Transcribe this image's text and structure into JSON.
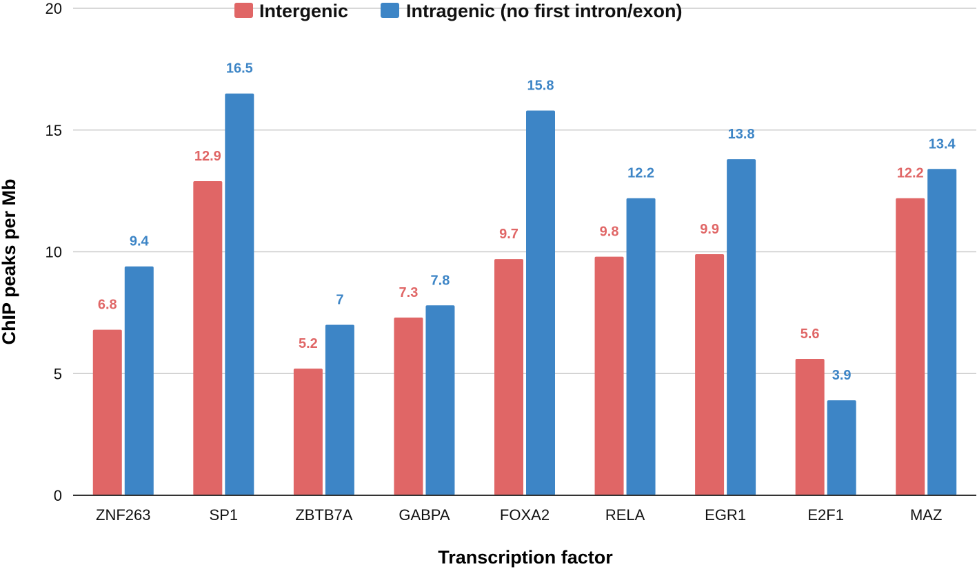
{
  "chart_data": {
    "type": "bar",
    "xlabel": "Transcription factor",
    "ylabel": "ChIP peaks per Mb",
    "ylim": [
      0,
      20
    ],
    "yticks": [
      "0",
      "5",
      "10",
      "15",
      "20"
    ],
    "grid": true,
    "legend_position": "top",
    "categories": [
      "ZNF263",
      "SP1",
      "ZBTB7A",
      "GABPA",
      "FOXA2",
      "RELA",
      "EGR1",
      "E2F1",
      "MAZ"
    ],
    "series": [
      {
        "name": "Intergenic",
        "color": "#e06666",
        "values": [
          6.8,
          12.9,
          5.2,
          7.3,
          9.7,
          9.8,
          9.9,
          5.6,
          12.2
        ],
        "labels": [
          "6.8",
          "12.9",
          "5.2",
          "7.3",
          "9.7",
          "9.8",
          "9.9",
          "5.6",
          "12.2"
        ]
      },
      {
        "name": "Intragenic (no first intron/exon)",
        "color": "#3d85c6",
        "values": [
          9.4,
          16.5,
          7,
          7.8,
          15.8,
          12.2,
          13.8,
          3.9,
          13.4
        ],
        "labels": [
          "9.4",
          "16.5",
          "7",
          "7.8",
          "15.8",
          "12.2",
          "13.8",
          "3.9",
          "13.4"
        ]
      }
    ]
  }
}
